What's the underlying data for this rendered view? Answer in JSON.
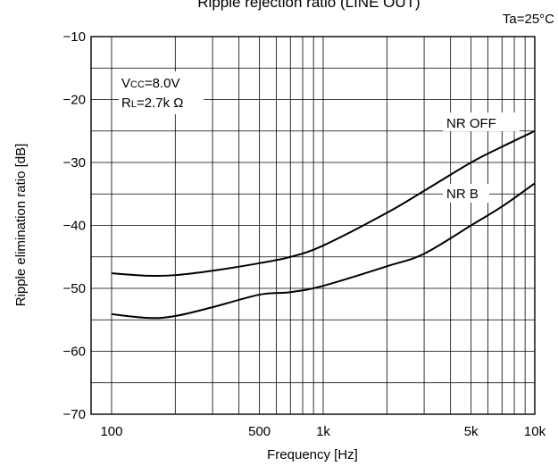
{
  "chart_data": {
    "type": "line",
    "title": "Ripple rejection ratio (LINE OUT)",
    "condition": "Ta=25°C",
    "xlabel": "Frequency [Hz]",
    "ylabel": "Ripple elimination ratio [dB]",
    "x_scale": "log",
    "xlim": [
      80,
      10000
    ],
    "ylim": [
      -70,
      -10
    ],
    "x_ticks": [
      {
        "value": 100,
        "label": "100"
      },
      {
        "value": 500,
        "label": "500"
      },
      {
        "value": 1000,
        "label": "1k"
      },
      {
        "value": 5000,
        "label": "5k"
      },
      {
        "value": 10000,
        "label": "10k"
      }
    ],
    "y_ticks": [
      {
        "value": -10,
        "label": "−10"
      },
      {
        "value": -20,
        "label": "−20"
      },
      {
        "value": -30,
        "label": "−30"
      },
      {
        "value": -40,
        "label": "−40"
      },
      {
        "value": -50,
        "label": "−50"
      },
      {
        "value": -60,
        "label": "−60"
      },
      {
        "value": -70,
        "label": "−70"
      }
    ],
    "grid": true,
    "annotations": {
      "vcc": {
        "main": "V",
        "sub": "CC",
        "rest": "=8.0V"
      },
      "rl": {
        "main": "R",
        "sub": "L",
        "rest": "=2.7k Ω"
      }
    },
    "series": [
      {
        "name": "NR OFF",
        "x": [
          100,
          150,
          200,
          300,
          500,
          700,
          1000,
          2000,
          3000,
          5000,
          7000,
          10000
        ],
        "y": [
          -47.6,
          -48.0,
          -47.9,
          -47.2,
          -46.0,
          -45.0,
          -43.2,
          -38.0,
          -34.5,
          -30.0,
          -27.5,
          -25.0
        ]
      },
      {
        "name": "NR B",
        "x": [
          100,
          150,
          200,
          300,
          500,
          700,
          1000,
          2000,
          3000,
          5000,
          7000,
          10000
        ],
        "y": [
          -54.1,
          -54.7,
          -54.4,
          -53.0,
          -51.0,
          -50.6,
          -49.6,
          -46.5,
          -44.5,
          -40.0,
          -37.0,
          -33.3
        ]
      }
    ]
  }
}
